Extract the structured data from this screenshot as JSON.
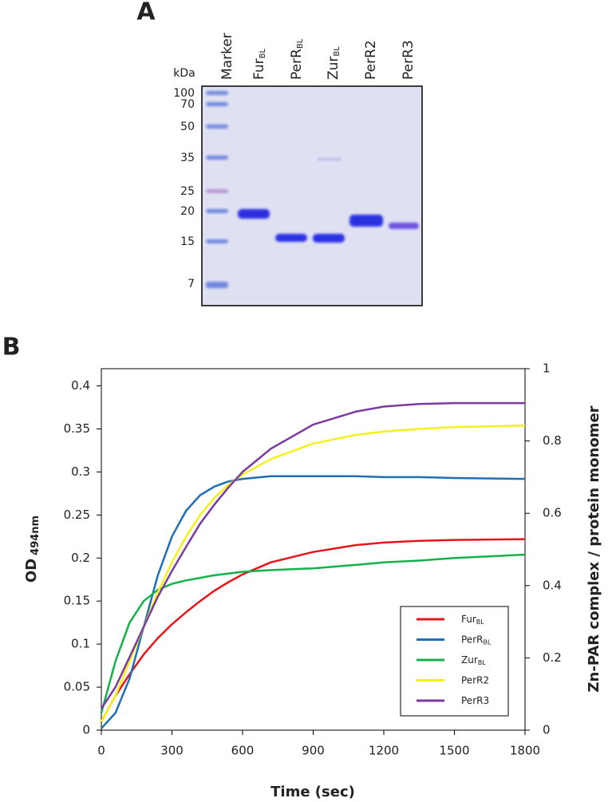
{
  "panel_a": {
    "label": "A",
    "unit_label": "kDa",
    "markers": [
      "100",
      "70",
      "50",
      "35",
      "25",
      "20",
      "15",
      "7"
    ],
    "lanes": [
      {
        "name": "Marker"
      },
      {
        "name": "Fur",
        "subscript": "BL"
      },
      {
        "name": "PerR",
        "subscript": "BL"
      },
      {
        "name": "Zur",
        "subscript": "BL"
      },
      {
        "name": "PerR2"
      },
      {
        "name": "PerR3"
      }
    ]
  },
  "chart_data": {
    "type": "line",
    "panel_label": "B",
    "x_label": "Time (sec)",
    "y_label": "OD",
    "y_label_subscript": "494nm",
    "y2_label": "Zn-PAR complex / protein monomer",
    "x": [
      0,
      60,
      120,
      180,
      240,
      300,
      360,
      420,
      480,
      540,
      600,
      720,
      900,
      1080,
      1200,
      1350,
      1500,
      1800
    ],
    "xlim": [
      0,
      1800
    ],
    "xticks": [
      0,
      300,
      600,
      900,
      1200,
      1500,
      1800
    ],
    "ylim": [
      0,
      0.42
    ],
    "yticks": [
      0,
      0.05,
      0.1,
      0.15,
      0.2,
      0.25,
      0.3,
      0.35,
      0.4
    ],
    "y2lim": [
      0,
      1
    ],
    "y2ticks": [
      0,
      0.2,
      0.4,
      0.6,
      0.8,
      1
    ],
    "legend": "lower right",
    "series": [
      {
        "name": "Fur",
        "name_subscript": "BL",
        "color": "#e8141b",
        "values": [
          0.01,
          0.04,
          0.065,
          0.088,
          0.107,
          0.123,
          0.137,
          0.15,
          0.162,
          0.172,
          0.181,
          0.195,
          0.207,
          0.215,
          0.218,
          0.22,
          0.221,
          0.222
        ]
      },
      {
        "name": "PerR",
        "name_subscript": "BL",
        "color": "#1f6fb5",
        "values": [
          0.002,
          0.02,
          0.06,
          0.12,
          0.18,
          0.225,
          0.255,
          0.273,
          0.283,
          0.289,
          0.292,
          0.295,
          0.295,
          0.295,
          0.294,
          0.294,
          0.293,
          0.292
        ]
      },
      {
        "name": "Zur",
        "name_subscript": "BL",
        "color": "#14b04a",
        "values": [
          0.02,
          0.08,
          0.125,
          0.15,
          0.163,
          0.17,
          0.174,
          0.177,
          0.18,
          0.182,
          0.184,
          0.186,
          0.188,
          0.192,
          0.195,
          0.197,
          0.2,
          0.204
        ]
      },
      {
        "name": "PerR2",
        "color": "#f5f01a",
        "values": [
          0.01,
          0.04,
          0.08,
          0.12,
          0.16,
          0.195,
          0.225,
          0.25,
          0.27,
          0.285,
          0.297,
          0.315,
          0.333,
          0.343,
          0.347,
          0.35,
          0.352,
          0.354
        ]
      },
      {
        "name": "PerR3",
        "color": "#7a3aa0",
        "values": [
          0.025,
          0.05,
          0.085,
          0.12,
          0.155,
          0.185,
          0.213,
          0.24,
          0.262,
          0.282,
          0.3,
          0.327,
          0.355,
          0.37,
          0.376,
          0.379,
          0.38,
          0.38
        ]
      }
    ]
  }
}
